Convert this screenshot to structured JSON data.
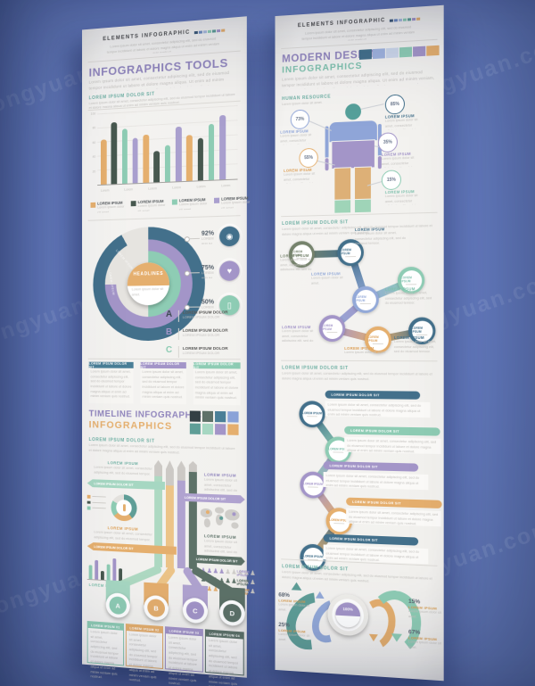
{
  "shared": {
    "brand": "ELEMENTS INFOGRAPHIC",
    "watermark": "©ongyuan.com",
    "section_heading": "LOREM IPSUM DOLOR SIT",
    "mini_heading": "LOREM IPSUM"
  },
  "lorem": {
    "intro": "Lorem ipsum dolor sit amet, consectetur adipiscing elit, sed do eiusmod tempor incididunt ut labore et dolore magna aliqua. Ut enim ad minim veniam, quis nostrud exercitation ullamco laboris nisi ut aliquip ex ea commodo consequat.",
    "block": "Lorem ipsum dolor sit amet, consectetur adipiscing elit, sed do eiusmod tempor incididunt ut labore et dolore magna aliqua ut enim ad minim veniam quis nostrud.",
    "small": "Lorem ipsum dolor sit amet, consectetur adipiscing elit, sed do eiusmod tempor.",
    "micro": "Lorem ipsum dolor sit amet."
  },
  "palette": {
    "background": "#657cc0",
    "panel": "#f2f1ee",
    "accent_purple": "#9186bd",
    "accent_teal": "#6fb0a4",
    "accent_orange": "#e5af6e",
    "accent_mint": "#8eccb4",
    "accent_slate": "#43708b",
    "accent_periwinkle": "#93a9d8",
    "accent_dark": "#47584f",
    "brand_bar": [
      "#3d5a78",
      "#6f8cc0",
      "#a9bbdd",
      "#8eccb4",
      "#5f9e97",
      "#a395c8",
      "#e5af6e"
    ],
    "design_bar": [
      "#43708b",
      "#9fb3de",
      "#ccd7ea",
      "#8eccb4",
      "#a395c8",
      "#e5af6e"
    ],
    "swatch_grid": [
      "#333f44",
      "#5e7168",
      "#4a7f97",
      "#8ba3d8",
      "#5f9e97",
      "#a6d7c2",
      "#a395c8",
      "#e5af6e"
    ]
  },
  "left": {
    "title": "INFOGRAPHICS TOOLS",
    "legend_label": "LOREM IPSUM",
    "donut": {
      "center": "HEADLINES",
      "rings": [
        {
          "pct": 92,
          "color": "#43708b"
        },
        {
          "pct": 75,
          "color": "#a395c8"
        },
        {
          "pct": 50,
          "color": "#8eccb4"
        }
      ],
      "stats": [
        {
          "value": "92%",
          "label": "LOREM IPSUM"
        },
        {
          "value": "75%",
          "label": "LOREM IPSUM"
        },
        {
          "value": "50%",
          "label": "LOREM IPSUM"
        }
      ]
    },
    "icon_glyphs": {
      "broadcast": "◉",
      "heart": "♥",
      "tablet": "▯"
    },
    "abc": [
      {
        "k": "A",
        "title": "LOREM IPSUM DOLOR",
        "sub": "LOREM IPSUM DOLOR"
      },
      {
        "k": "B",
        "title": "LOREM IPSUM DOLOR",
        "sub": "LOREM IPSUM DOLOR"
      },
      {
        "k": "C",
        "title": "LOREM IPSUM DOLOR",
        "sub": "LOREM IPSUM DOLOR"
      }
    ],
    "timeline_title1": "TIMELINE INFOGRAPHIC",
    "timeline_title2": "INFOGRAPHICS",
    "letters": [
      "A",
      "B",
      "C",
      "D"
    ],
    "boxes": [
      "LOREM IPSUM 01",
      "LOREM IPSUM 02",
      "LOREM IPSUM 03",
      "LOREM IPSUM 04"
    ],
    "people": [
      {
        "filled": 4,
        "total": 9,
        "color": "#a395c8"
      },
      {
        "filled": 6,
        "total": 9,
        "color": "#5d7268"
      },
      {
        "filled": 5,
        "total": 9,
        "color": "#e5af6e"
      }
    ],
    "mini_bars": [
      60,
      85,
      40,
      70,
      95,
      55
    ]
  },
  "right": {
    "title1": "MODERN DESIGN",
    "title2": "INFOGRAPHICS",
    "hr_heading": "HUMAN RESOURCE",
    "hr_stats": [
      {
        "value": "73%",
        "label": "LOREM IPSUM"
      },
      {
        "value": "55%",
        "label": "LOREM IPSUM"
      },
      {
        "value": "85%",
        "label": "LOREM IPSUM"
      },
      {
        "value": "35%",
        "label": "LOREM IPSUM"
      },
      {
        "value": "15%",
        "label": "LOREM IPSUM"
      }
    ],
    "node_label": "LOREM IPSUM",
    "flow_center": "100%",
    "flow_stats": [
      {
        "value": "68%",
        "label": "LOREM IPSUM"
      },
      {
        "value": "25%",
        "label": "LOREM IPSUM"
      },
      {
        "value": "15%",
        "label": "LOREM IPSUM"
      },
      {
        "value": "67%",
        "label": "LOREM IPSUM"
      }
    ]
  },
  "chart_data": {
    "type": "bar",
    "title": "",
    "categories": [
      "Lorem",
      "Lorem",
      "Lorem",
      "Lorem",
      "Lorem",
      "Lorem"
    ],
    "values": [
      62,
      85,
      76,
      62,
      66,
      43,
      50,
      74,
      62,
      57,
      76,
      86
    ],
    "colors": [
      "#e5af6e",
      "#47584f",
      "#8eccb4",
      "#a99fce"
    ],
    "ylim": [
      0,
      100
    ],
    "y_ticks": [
      "100",
      "80",
      "60",
      "40",
      "20"
    ],
    "legend_position": "bottom",
    "grid": true
  }
}
